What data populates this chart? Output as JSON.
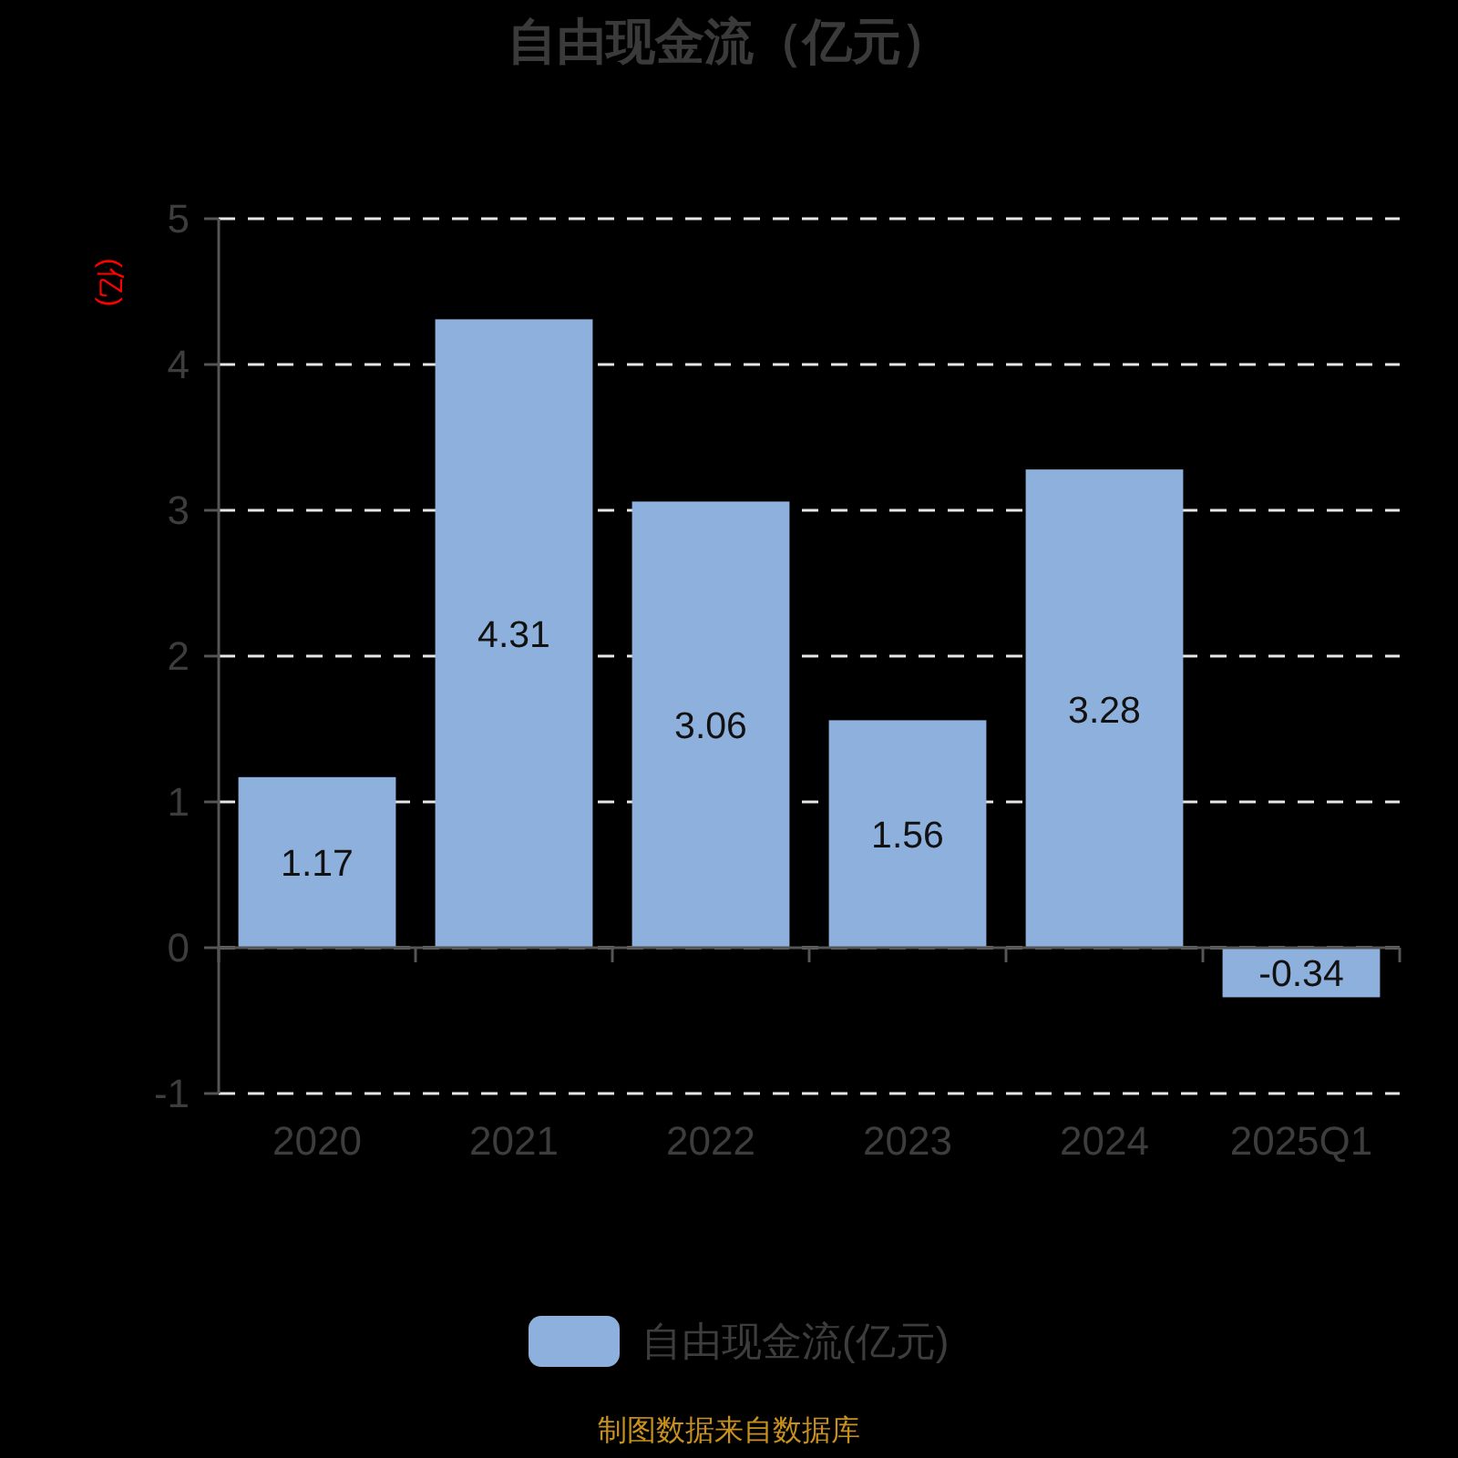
{
  "chart_data": {
    "type": "bar",
    "title": "自由现金流（亿元）",
    "ylabel": "(亿)",
    "categories": [
      "2020",
      "2021",
      "2022",
      "2023",
      "2024",
      "2025Q1"
    ],
    "series": [
      {
        "name": "自由现金流(亿元)",
        "color": "#8eb0dc",
        "values": [
          1.17,
          4.31,
          3.06,
          1.56,
          3.28,
          -0.34
        ]
      }
    ],
    "ylim": [
      -1,
      5
    ],
    "yticks": [
      -1,
      0,
      1,
      2,
      3,
      4,
      5
    ],
    "grid": "y",
    "legend": "bottom",
    "data_labels": true,
    "annotations": [
      "制图数据来自数据库"
    ]
  }
}
